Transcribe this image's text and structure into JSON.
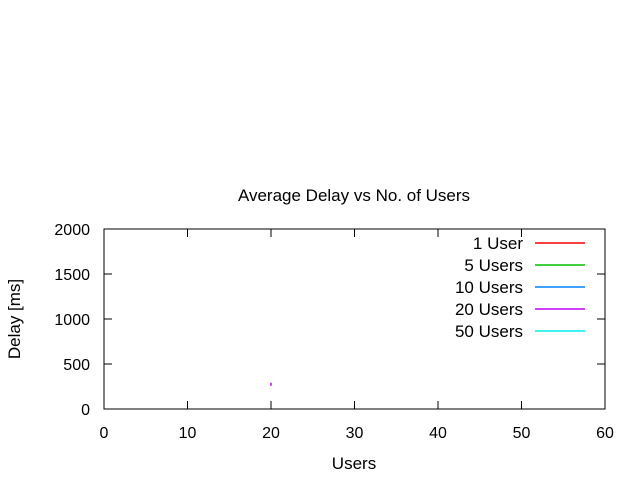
{
  "chart_data": {
    "type": "line",
    "title": "Average Delay vs No. of Users",
    "xlabel": "Users",
    "ylabel": "Delay [ms]",
    "xlim": [
      0,
      60
    ],
    "ylim": [
      0,
      2000
    ],
    "xticks": [
      0,
      10,
      20,
      30,
      40,
      50,
      60
    ],
    "yticks": [
      0,
      500,
      1000,
      1500,
      2000
    ],
    "grid": false,
    "legend_position": "top-right",
    "series": [
      {
        "name": "1 User",
        "color": "#ff0000",
        "points": []
      },
      {
        "name": "5 Users",
        "color": "#00c000",
        "points": []
      },
      {
        "name": "10 Users",
        "color": "#0080ff",
        "points": []
      },
      {
        "name": "20 Users",
        "color": "#c000ff",
        "points": [
          {
            "x": 20,
            "y": 275
          }
        ]
      },
      {
        "name": "50 Users",
        "color": "#00eeee",
        "points": []
      }
    ]
  }
}
